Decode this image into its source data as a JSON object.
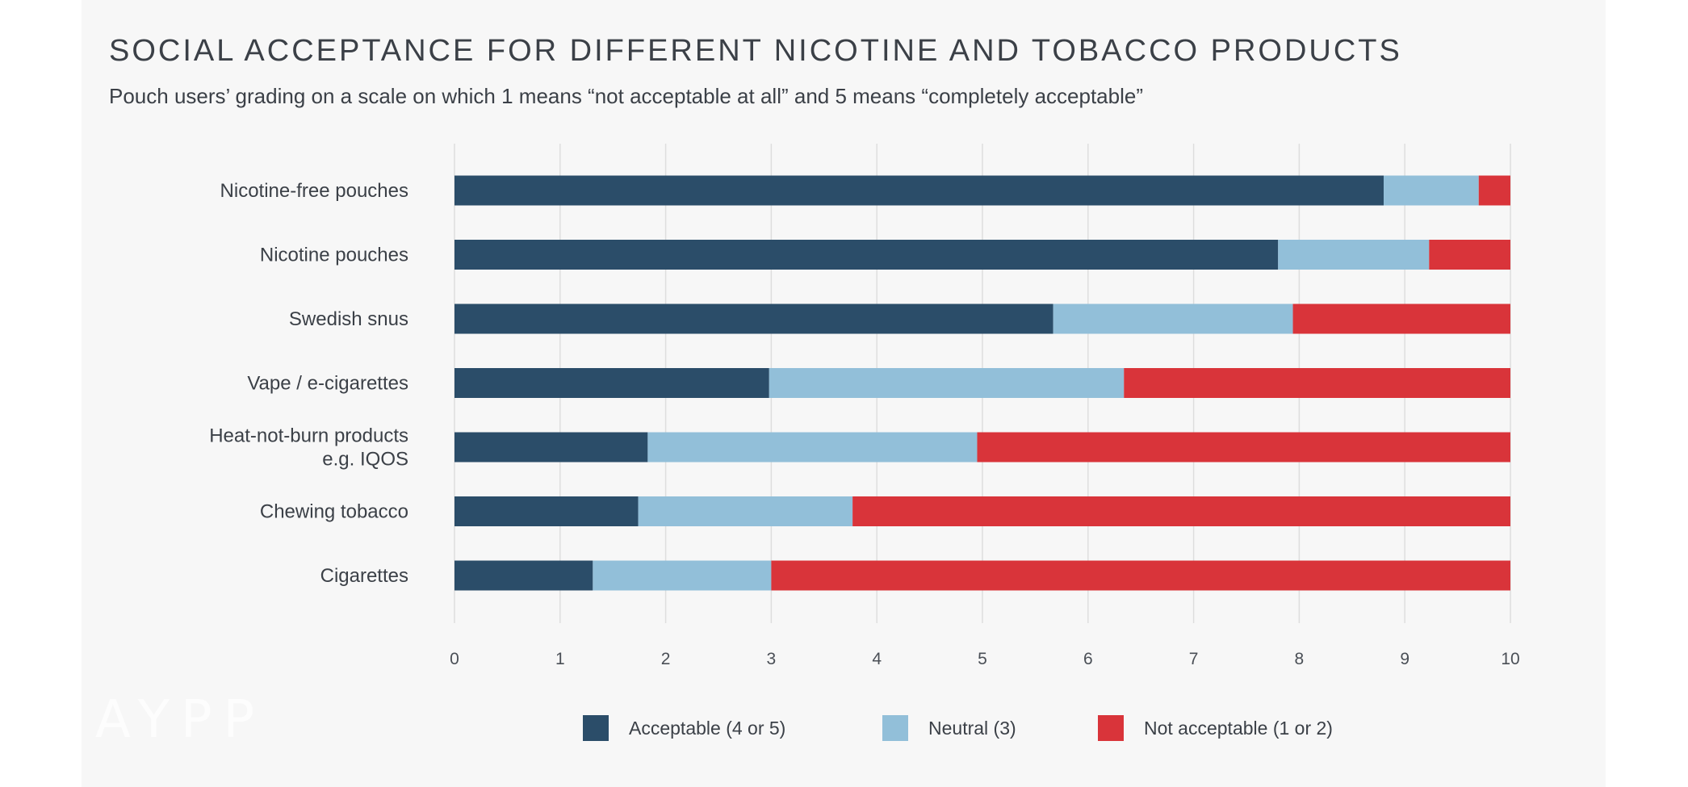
{
  "watermark": "AYPP",
  "chart_data": {
    "type": "bar",
    "orientation": "horizontal",
    "stacked": true,
    "title": "SOCIAL ACCEPTANCE FOR DIFFERENT NICOTINE AND TOBACCO PRODUCTS",
    "subtitle": "Pouch users’ grading on a scale on which 1 means “not acceptable at all” and 5 means “completely acceptable”",
    "categories": [
      "Nicotine-free pouches",
      "Nicotine pouches",
      "Swedish snus",
      "Vape / e-cigarettes",
      "Heat-not-burn products\ne.g. IQOS",
      "Chewing tobacco",
      "Cigarettes"
    ],
    "series": [
      {
        "name": "Acceptable (4 or 5)",
        "color": "#2b4d69",
        "values": [
          8.8,
          7.8,
          5.67,
          2.98,
          1.83,
          1.74,
          1.31
        ]
      },
      {
        "name": "Neutral (3)",
        "color": "#92bfd9",
        "values": [
          0.9,
          1.43,
          2.27,
          3.36,
          3.12,
          2.03,
          1.69
        ]
      },
      {
        "name": "Not acceptable (1 or 2)",
        "color": "#d9343a",
        "values": [
          0.3,
          0.77,
          2.06,
          3.66,
          5.05,
          6.23,
          7.0
        ]
      }
    ],
    "xlim": [
      0,
      10
    ],
    "xticks": [
      "0",
      "1",
      "2",
      "3",
      "4",
      "5",
      "6",
      "7",
      "8",
      "9",
      "10"
    ],
    "grid": true,
    "legend_position": "bottom"
  }
}
